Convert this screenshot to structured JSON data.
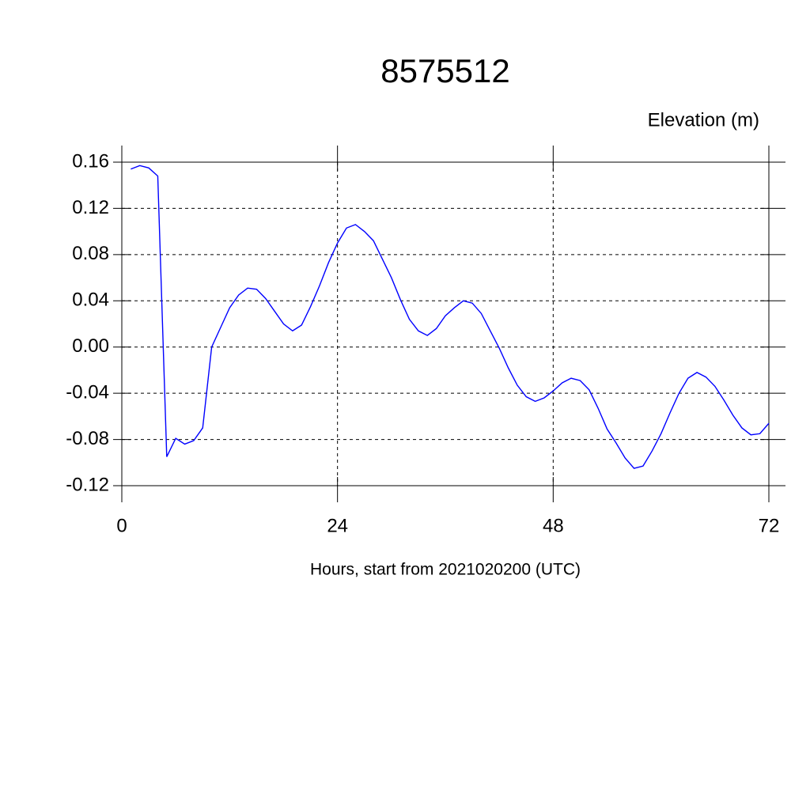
{
  "chart_data": {
    "type": "line",
    "title": "8575512",
    "ylabel": "Elevation (m)",
    "xlabel": "Hours, start from 2021020200 (UTC)",
    "x": [
      1,
      2,
      3,
      4,
      5,
      6,
      7,
      8,
      9,
      10,
      11,
      12,
      13,
      14,
      15,
      16,
      17,
      18,
      19,
      20,
      21,
      22,
      23,
      24,
      25,
      26,
      27,
      28,
      29,
      30,
      31,
      32,
      33,
      34,
      35,
      36,
      37,
      38,
      39,
      40,
      41,
      42,
      43,
      44,
      45,
      46,
      47,
      48,
      49,
      50,
      51,
      52,
      53,
      54,
      55,
      56,
      57,
      58,
      59,
      60,
      61,
      62,
      63,
      64,
      65,
      66,
      67,
      68,
      69,
      70,
      71,
      72
    ],
    "series": [
      {
        "color": "#0000ff",
        "values": [
          0.154,
          0.157,
          0.155,
          0.148,
          -0.095,
          -0.079,
          -0.084,
          -0.081,
          -0.07,
          0.0,
          0.017,
          0.034,
          0.045,
          0.051,
          0.05,
          0.042,
          0.031,
          0.02,
          0.014,
          0.019,
          0.035,
          0.053,
          0.073,
          0.09,
          0.103,
          0.106,
          0.1,
          0.092,
          0.076,
          0.06,
          0.041,
          0.024,
          0.014,
          0.01,
          0.016,
          0.027,
          0.034,
          0.04,
          0.038,
          0.029,
          0.014,
          -0.001,
          -0.018,
          -0.033,
          -0.043,
          -0.047,
          -0.044,
          -0.038,
          -0.031,
          -0.027,
          -0.029,
          -0.037,
          -0.053,
          -0.071,
          -0.083,
          -0.096,
          -0.105,
          -0.103,
          -0.09,
          -0.075,
          -0.057,
          -0.04,
          -0.027,
          -0.022,
          -0.026,
          -0.034,
          -0.046,
          -0.059,
          -0.07,
          -0.076,
          -0.075,
          -0.066
        ]
      }
    ],
    "xlim": [
      0,
      72
    ],
    "xticks": [
      0,
      24,
      48,
      72
    ],
    "ylim": [
      -0.12,
      0.16
    ],
    "yticks": [
      -0.12,
      -0.08,
      -0.04,
      {
        "value": 0,
        "label": "0.00"
      },
      0.04,
      0.08,
      0.12,
      0.16
    ],
    "grid": true
  }
}
